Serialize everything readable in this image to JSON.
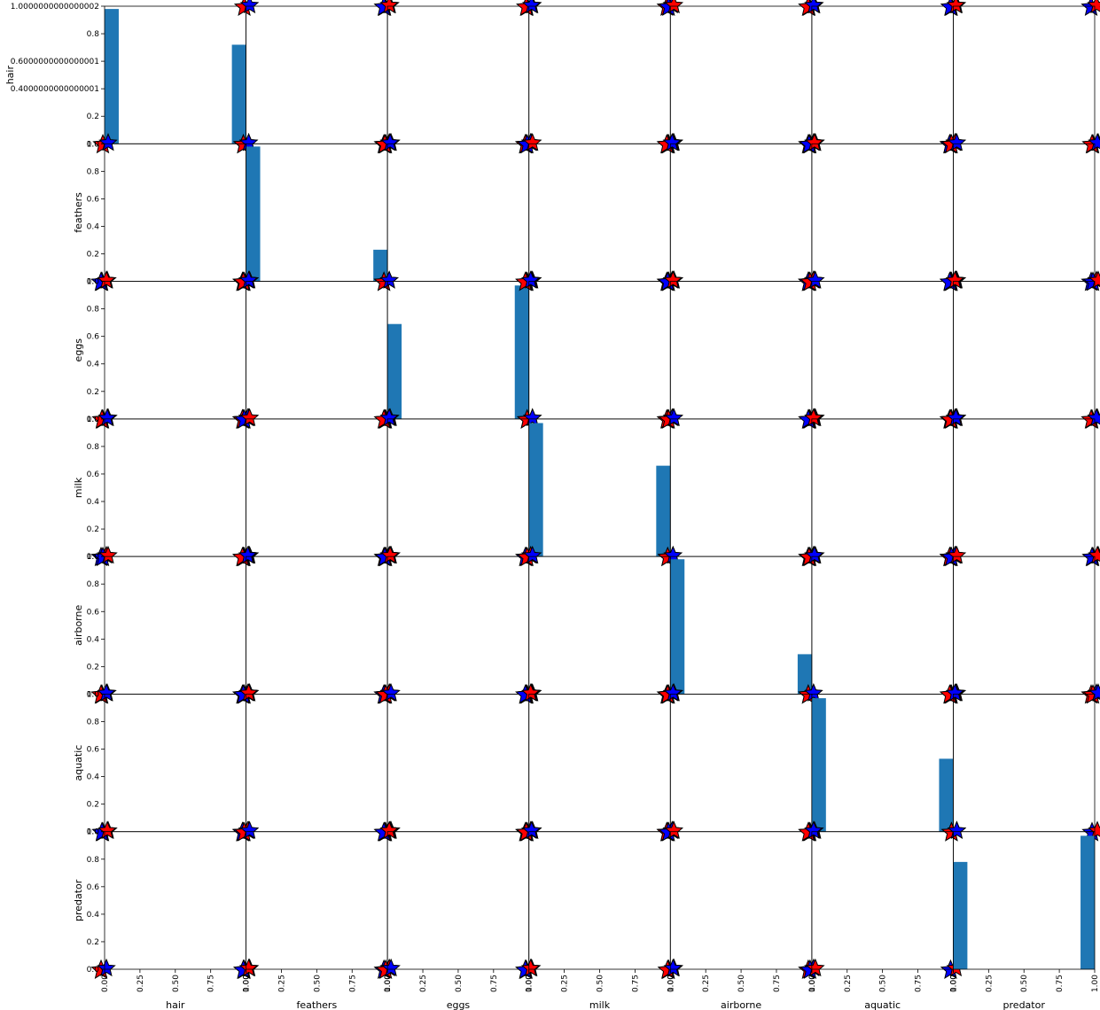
{
  "chart_data": {
    "type": "scatter",
    "variables": [
      "hair",
      "feathers",
      "eggs",
      "milk",
      "airborne",
      "aquatic",
      "predator"
    ],
    "axis_range": [
      0,
      1
    ],
    "xticks": [
      "0.00",
      "0.25",
      "0.50",
      "0.75",
      "1.00"
    ],
    "yticks_first_row": [
      "0.0",
      "0.2",
      "0.4000000000000001",
      "0.6000000000000001",
      "0.8",
      "1.0000000000000002"
    ],
    "yticks": [
      "0.0",
      "0.2",
      "0.4",
      "0.6",
      "0.8",
      "1.0"
    ],
    "diagonal_histograms": [
      {
        "variable": "hair",
        "bins": [
          {
            "x": 0.05,
            "height": 0.98
          },
          {
            "x": 0.95,
            "height": 0.72
          }
        ]
      },
      {
        "variable": "feathers",
        "bins": [
          {
            "x": 0.05,
            "height": 0.98
          },
          {
            "x": 0.95,
            "height": 0.23
          }
        ]
      },
      {
        "variable": "eggs",
        "bins": [
          {
            "x": 0.05,
            "height": 0.69
          },
          {
            "x": 0.95,
            "height": 0.97
          }
        ]
      },
      {
        "variable": "milk",
        "bins": [
          {
            "x": 0.05,
            "height": 0.97
          },
          {
            "x": 0.95,
            "height": 0.66
          }
        ]
      },
      {
        "variable": "airborne",
        "bins": [
          {
            "x": 0.05,
            "height": 0.98
          },
          {
            "x": 0.95,
            "height": 0.29
          }
        ]
      },
      {
        "variable": "aquatic",
        "bins": [
          {
            "x": 0.05,
            "height": 0.97
          },
          {
            "x": 0.95,
            "height": 0.53
          }
        ]
      },
      {
        "variable": "predator",
        "bins": [
          {
            "x": 0.05,
            "height": 0.78
          },
          {
            "x": 0.95,
            "height": 0.97
          }
        ]
      }
    ],
    "scatter_points": [
      {
        "x": 0,
        "y": 0
      },
      {
        "x": 0,
        "y": 1
      },
      {
        "x": 1,
        "y": 0
      },
      {
        "x": 1,
        "y": 1
      }
    ],
    "marker": "star",
    "point_colors": [
      "#ff0000",
      "#0000ff"
    ],
    "bar_color": "#1f77b4",
    "grid": false
  }
}
